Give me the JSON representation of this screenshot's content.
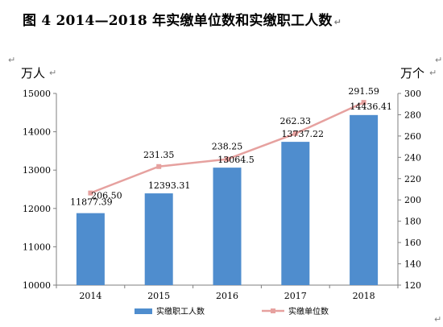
{
  "title": "图 4   2014—2018 年实缴单位数和实缴职工人数",
  "paragraph_mark": "↵",
  "chart_data": {
    "type": "bar",
    "categories": [
      "2014",
      "2015",
      "2016",
      "2017",
      "2018"
    ],
    "series": [
      {
        "name": "实缴职工人数",
        "type": "bar",
        "axis": "left",
        "values": [
          11877.39,
          12393.31,
          13064.5,
          13737.22,
          14436.41
        ],
        "labels": [
          "11877.39",
          "12393.31",
          "13064.5",
          "13737.22",
          "14436.41"
        ],
        "color": "#4f8dce"
      },
      {
        "name": "实缴单位数",
        "type": "line",
        "axis": "right",
        "values": [
          206.5,
          231.35,
          238.25,
          262.33,
          291.59
        ],
        "labels": [
          "206.50",
          "231.35",
          "238.25",
          "262.33",
          "291.59"
        ],
        "color": "#e6a19f"
      }
    ],
    "y_left": {
      "unit": "万人",
      "range": [
        10000,
        15000
      ],
      "ticks": [
        10000,
        11000,
        12000,
        13000,
        14000,
        15000
      ]
    },
    "y_right": {
      "unit": "万个",
      "range": [
        120,
        300
      ],
      "ticks": [
        120,
        140,
        160,
        180,
        200,
        220,
        240,
        260,
        280,
        300
      ]
    },
    "grid": false,
    "legend_position": "bottom"
  }
}
